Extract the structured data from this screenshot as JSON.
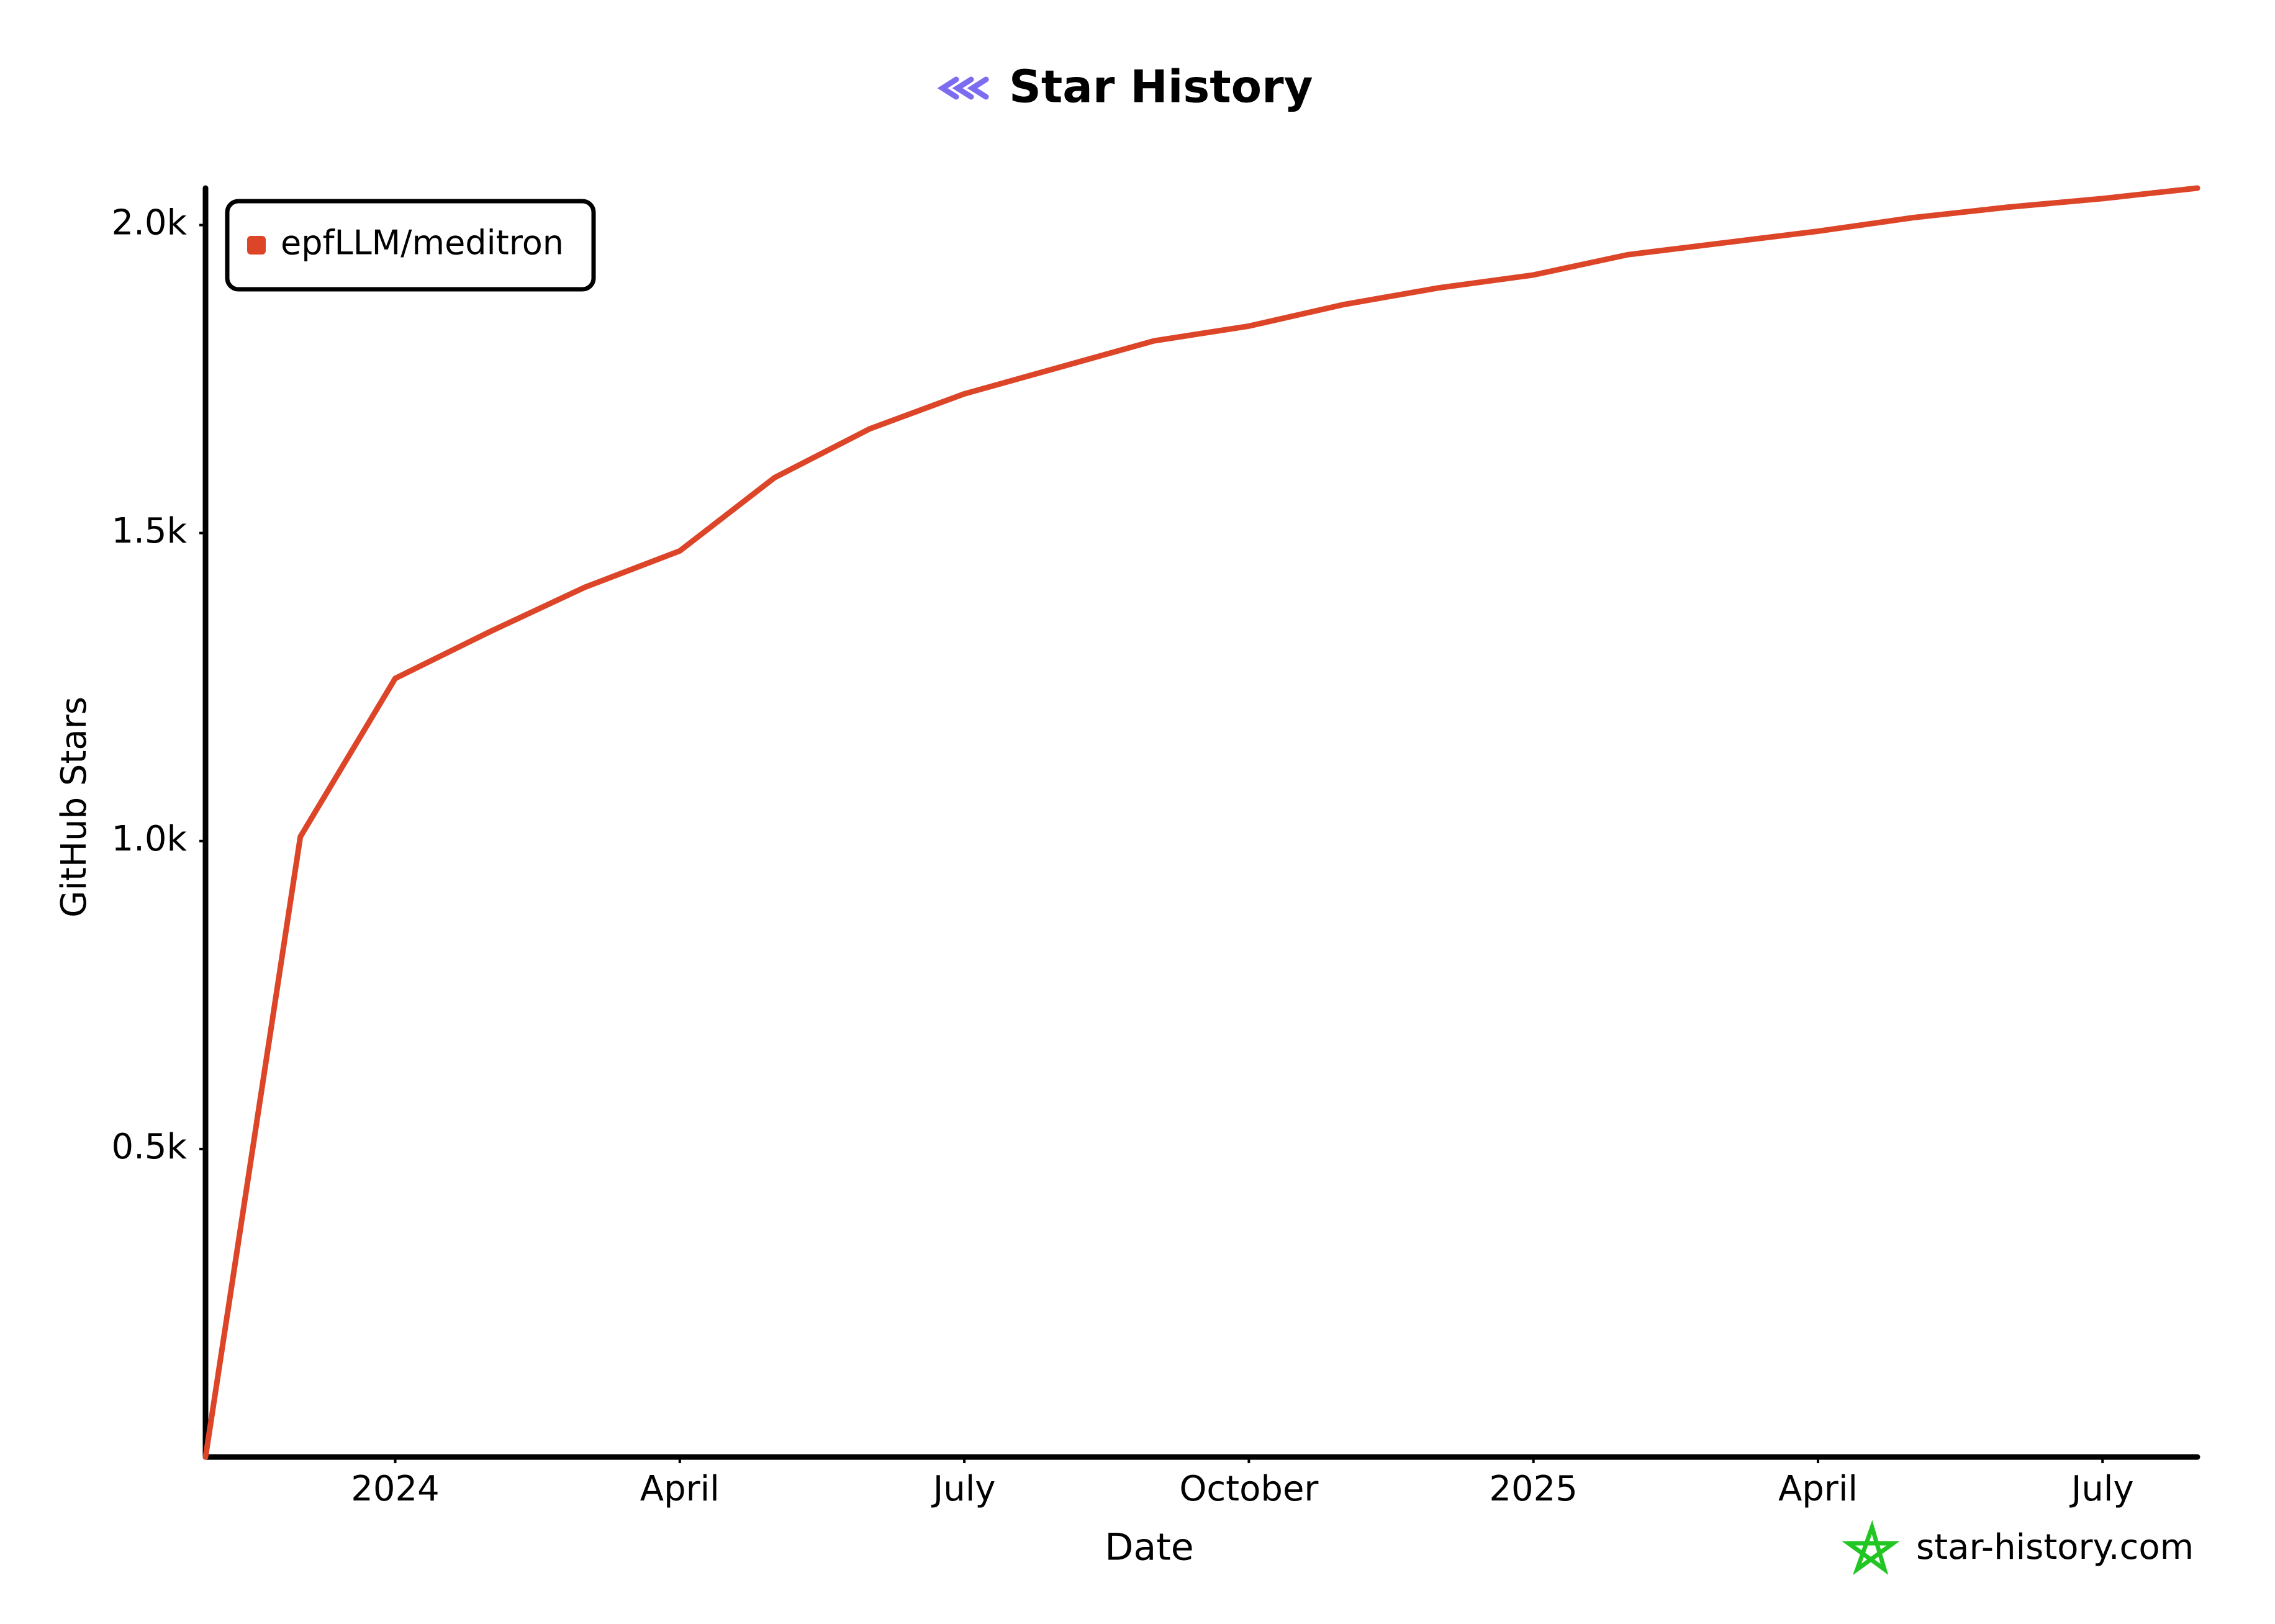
{
  "chart_data": {
    "type": "line",
    "title": "Star History",
    "x_label": "Date",
    "y_label": "GitHub Stars",
    "watermark": "star-history.com",
    "x": [
      "2023-11",
      "2023-12",
      "2024-01",
      "2024-02",
      "2024-03",
      "2024-04",
      "2024-05",
      "2024-06",
      "2024-07",
      "2024-08",
      "2024-09",
      "2024-10",
      "2024-11",
      "2024-12",
      "2025-01",
      "2025-02",
      "2025-03",
      "2025-04",
      "2025-05",
      "2025-06",
      "2025-07",
      "2025-08"
    ],
    "series": [
      {
        "name": "epfLLM/meditron",
        "color": "#dd4528",
        "values": [
          0,
          1007,
          1264,
          1340,
          1412,
          1471,
          1590,
          1669,
          1726,
          1769,
          1812,
          1836,
          1871,
          1898,
          1919,
          1952,
          1971,
          1990,
          2012,
          2029,
          2043,
          2060
        ]
      }
    ],
    "xlim": [
      "2023-11",
      "2025-08"
    ],
    "xticks": [
      {
        "value": "2024-01",
        "label": "2024"
      },
      {
        "value": "2024-04",
        "label": "April"
      },
      {
        "value": "2024-07",
        "label": "July"
      },
      {
        "value": "2024-10",
        "label": "October"
      },
      {
        "value": "2025-01",
        "label": "2025"
      },
      {
        "value": "2025-04",
        "label": "April"
      },
      {
        "value": "2025-07",
        "label": "July"
      }
    ],
    "ylim": [
      0,
      2060
    ],
    "yticks": [
      {
        "value": 500,
        "label": "0.5k"
      },
      {
        "value": 1000,
        "label": "1.0k"
      },
      {
        "value": 1500,
        "label": "1.5k"
      },
      {
        "value": 2000,
        "label": "2.0k"
      }
    ],
    "grid": false,
    "legend": "top-left"
  }
}
